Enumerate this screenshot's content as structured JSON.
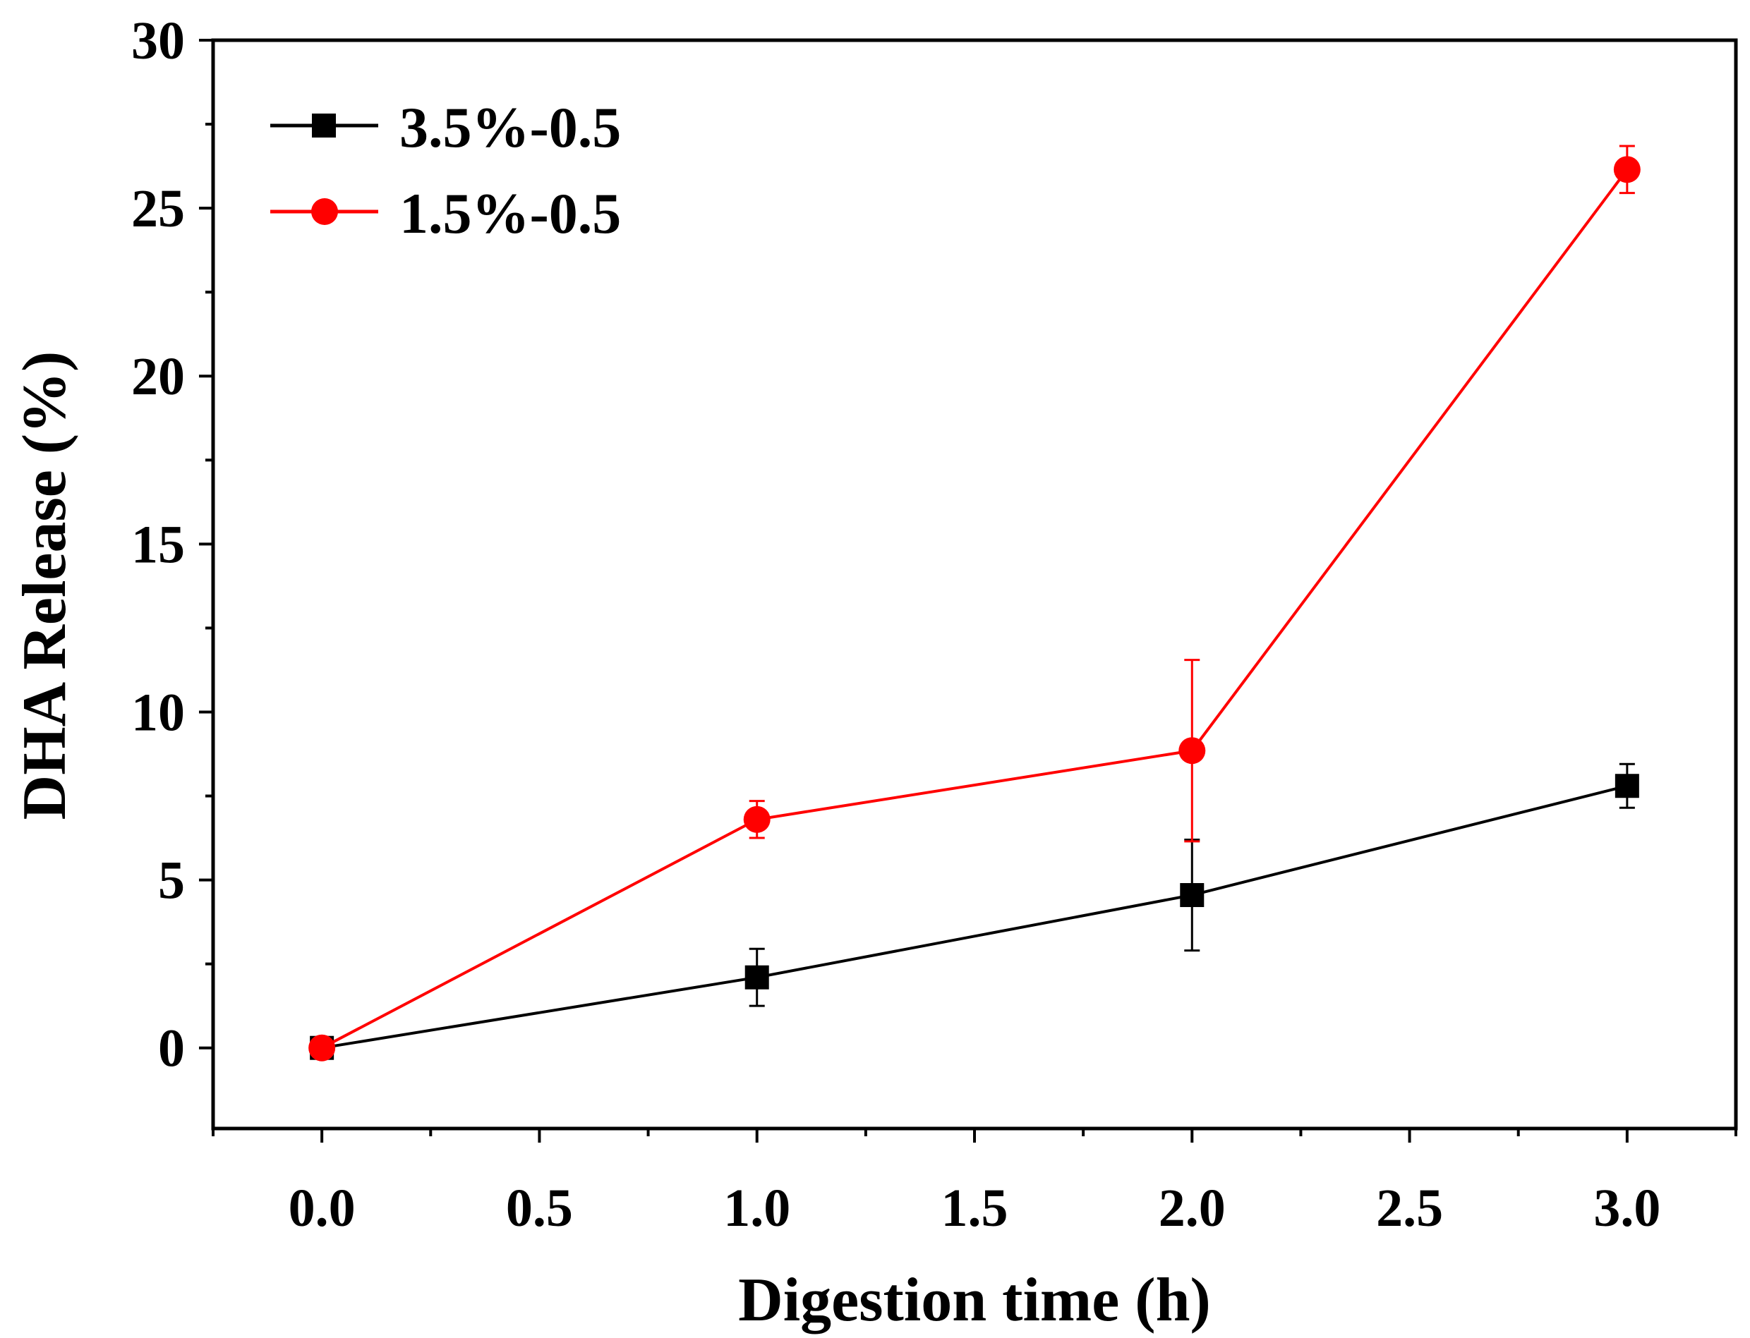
{
  "chart_data": {
    "type": "line",
    "title": "",
    "xlabel": "Digestion time (h)",
    "ylabel": "DHA Release (%)",
    "xlim": [
      -0.25,
      3.25
    ],
    "ylim": [
      -2.4,
      30
    ],
    "x_ticks": [
      "0.0",
      "0.5",
      "1.0",
      "1.5",
      "2.0",
      "2.5",
      "3.0"
    ],
    "x_tick_values": [
      0,
      0.5,
      1,
      1.5,
      2,
      2.5,
      3
    ],
    "y_ticks": [
      "0",
      "5",
      "10",
      "15",
      "20",
      "25",
      "30"
    ],
    "y_tick_values": [
      0,
      5,
      10,
      15,
      20,
      25,
      30
    ],
    "grid": false,
    "legend_position": "top-left",
    "series": [
      {
        "name": "3.5%-0.5",
        "color": "#000000",
        "marker": "square",
        "x": [
          0,
          1,
          2,
          3
        ],
        "y": [
          0,
          2.1,
          4.55,
          7.8
        ],
        "err": [
          0,
          0.85,
          1.65,
          0.65
        ]
      },
      {
        "name": "1.5%-0.5",
        "color": "#ff0000",
        "marker": "circle",
        "x": [
          0,
          1,
          2,
          3
        ],
        "y": [
          0,
          6.8,
          8.85,
          26.15
        ],
        "err": [
          0,
          0.55,
          2.7,
          0.7
        ]
      }
    ]
  }
}
